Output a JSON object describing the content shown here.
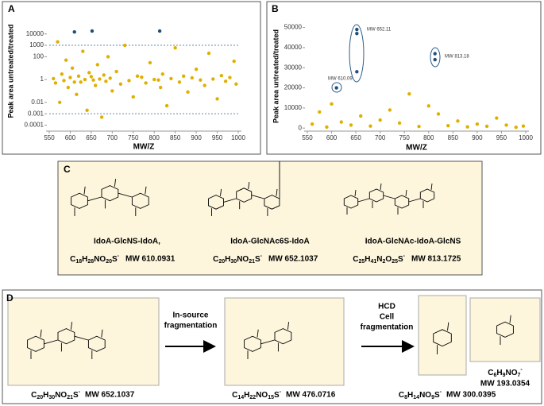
{
  "chart_data": [
    {
      "type": "scatter",
      "label": "A",
      "xlabel": "MW/Z",
      "ylabel": "Peak area untreated/treated",
      "log_y": true,
      "grid": false,
      "xlim": [
        550,
        1000
      ],
      "xticks": [
        550,
        600,
        650,
        700,
        750,
        800,
        850,
        900,
        950,
        1000
      ],
      "ylim": [
        3e-05,
        1000000
      ],
      "yticks": [
        0.0001,
        0.001,
        0.01,
        1,
        100,
        1000,
        10000
      ],
      "reference_lines": [
        1000,
        0.001
      ],
      "series": [
        {
          "color": "#e0b000",
          "x": [
            560,
            565,
            570,
            575,
            580,
            585,
            590,
            595,
            600,
            605,
            610,
            615,
            620,
            625,
            630,
            635,
            640,
            645,
            650,
            655,
            660,
            665,
            670,
            675,
            680,
            685,
            690,
            695,
            700,
            710,
            720,
            730,
            740,
            750,
            760,
            770,
            780,
            790,
            800,
            810,
            815,
            820,
            830,
            840,
            850,
            860,
            870,
            880,
            890,
            900,
            910,
            920,
            930,
            940,
            950,
            960,
            970,
            980,
            990,
            995
          ],
          "values": [
            1.2,
            0.5,
            2000,
            0.01,
            3,
            0.8,
            50,
            0.2,
            1.5,
            10,
            0.6,
            0.05,
            2,
            0.6,
            300,
            1,
            0.002,
            4,
            1.8,
            0.9,
            0.3,
            20,
            1.1,
            0.0005,
            2.5,
            0.7,
            100,
            1.3,
            0.1,
            5,
            0.4,
            1000,
            0.8,
            0.03,
            2,
            1.6,
            0.5,
            30,
            1,
            0.9,
            0.2,
            3,
            0.005,
            1.2,
            600,
            0.6,
            2,
            0.08,
            1.4,
            8,
            0.9,
            0.3,
            200,
            1.1,
            0.02,
            2.2,
            0.7,
            1.5,
            40,
            0.4
          ]
        },
        {
          "color": "#1f4e79",
          "x": [
            610,
            652,
            813
          ],
          "values": [
            15000,
            18000,
            18000
          ]
        }
      ]
    },
    {
      "type": "scatter",
      "label": "B",
      "xlabel": "MW/Z",
      "ylabel": "Peak area untreated/treated",
      "log_y": false,
      "grid": false,
      "xlim": [
        550,
        1000
      ],
      "xticks": [
        550,
        600,
        650,
        700,
        750,
        800,
        850,
        900,
        950,
        1000
      ],
      "ylim": [
        -1500,
        53000
      ],
      "yticks": [
        0,
        10000,
        20000,
        30000,
        40000,
        50000
      ],
      "annotations": [
        "MW 652.11",
        "MW 813.18",
        "MW 610.09"
      ],
      "series": [
        {
          "color": "#e0b000",
          "x": [
            560,
            575,
            590,
            600,
            620,
            640,
            660,
            680,
            700,
            720,
            740,
            760,
            780,
            800,
            820,
            840,
            860,
            880,
            900,
            920,
            940,
            960,
            980,
            995
          ],
          "values": [
            2000,
            8000,
            500,
            12000,
            3000,
            1500,
            6000,
            1000,
            4000,
            9000,
            2500,
            17000,
            800,
            11000,
            7000,
            1200,
            3500,
            600,
            2000,
            900,
            5000,
            1500,
            400,
            1000
          ]
        },
        {
          "color": "#1f4e79",
          "x": [
            610,
            652,
            652,
            652,
            813,
            813
          ],
          "values": [
            20000,
            49000,
            47000,
            28000,
            37000,
            34000
          ]
        }
      ]
    }
  ],
  "panel_c": {
    "label": "C",
    "compounds": [
      {
        "name": "IdoA-GlcNS-IdoA,",
        "formula": "C18H28NO20S-",
        "mw": "MW 610.0931"
      },
      {
        "name": "IdoA-GlcNAc6S-IdoA",
        "formula": "C20H30NO21S-",
        "mw": "MW 652.1037"
      },
      {
        "name": "IdoA-GlcNAc-IdoA-GlcNS",
        "formula": "C25H41N2O25S-",
        "mw": "MW 813.1725"
      }
    ]
  },
  "panel_d": {
    "label": "D",
    "compounds": [
      {
        "formula": "C20H30NO21S-",
        "mw": "MW 652.1037"
      },
      {
        "formula": "C14H22NO15S-",
        "mw": "MW 476.0716"
      },
      {
        "formula": "C8H14NO9S-",
        "mw": "MW 300.0395"
      },
      {
        "formula": "C6H9NO7-",
        "mw": "MW 193.0354"
      }
    ],
    "arrows": [
      [
        "In-source",
        "fragmentation"
      ],
      [
        "HCD",
        "Cell",
        "fragmentation"
      ]
    ]
  }
}
